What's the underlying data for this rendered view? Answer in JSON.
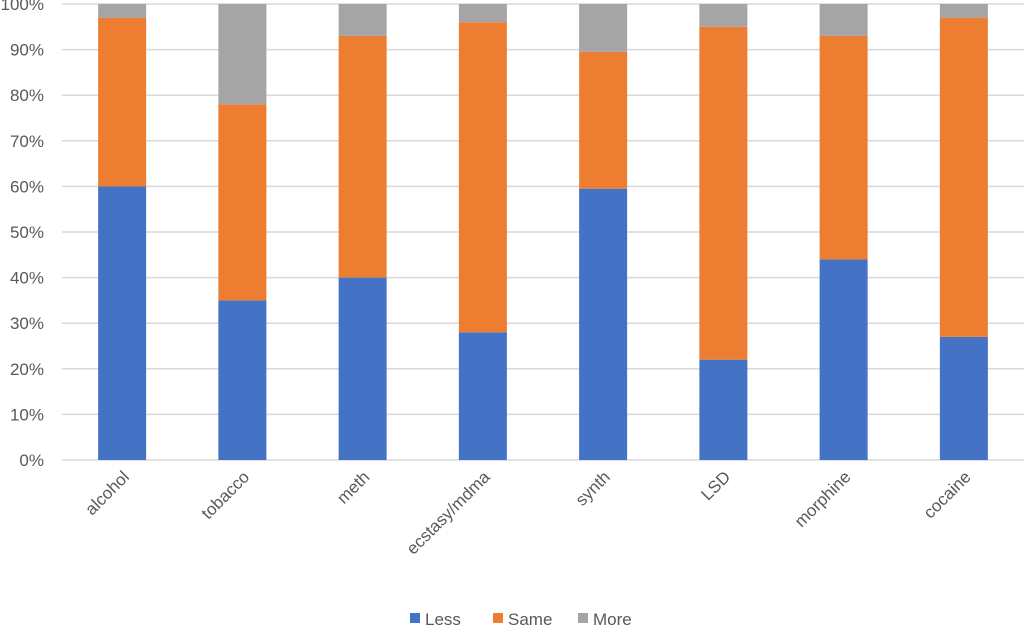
{
  "chart_data": {
    "type": "bar",
    "stacked": "percent",
    "categories": [
      "alcohol",
      "tobacco",
      "meth",
      "ecstasy/mdma",
      "synth",
      "LSD",
      "morphine",
      "cocaine"
    ],
    "series": [
      {
        "name": "Less",
        "color": "#4472C4",
        "values": [
          60,
          35,
          40,
          28,
          59.5,
          22,
          44,
          27
        ]
      },
      {
        "name": "Same",
        "color": "#ED7D31",
        "values": [
          37,
          43,
          53,
          68,
          30,
          73,
          49,
          70
        ]
      },
      {
        "name": "More",
        "color": "#A5A5A5",
        "values": [
          3,
          22,
          7,
          4,
          10.5,
          5,
          7,
          3
        ]
      }
    ],
    "yticks": [
      "0%",
      "10%",
      "20%",
      "30%",
      "40%",
      "50%",
      "60%",
      "70%",
      "80%",
      "90%",
      "100%"
    ],
    "ylim": [
      0,
      100
    ],
    "grid": true,
    "legend": "bottom"
  }
}
